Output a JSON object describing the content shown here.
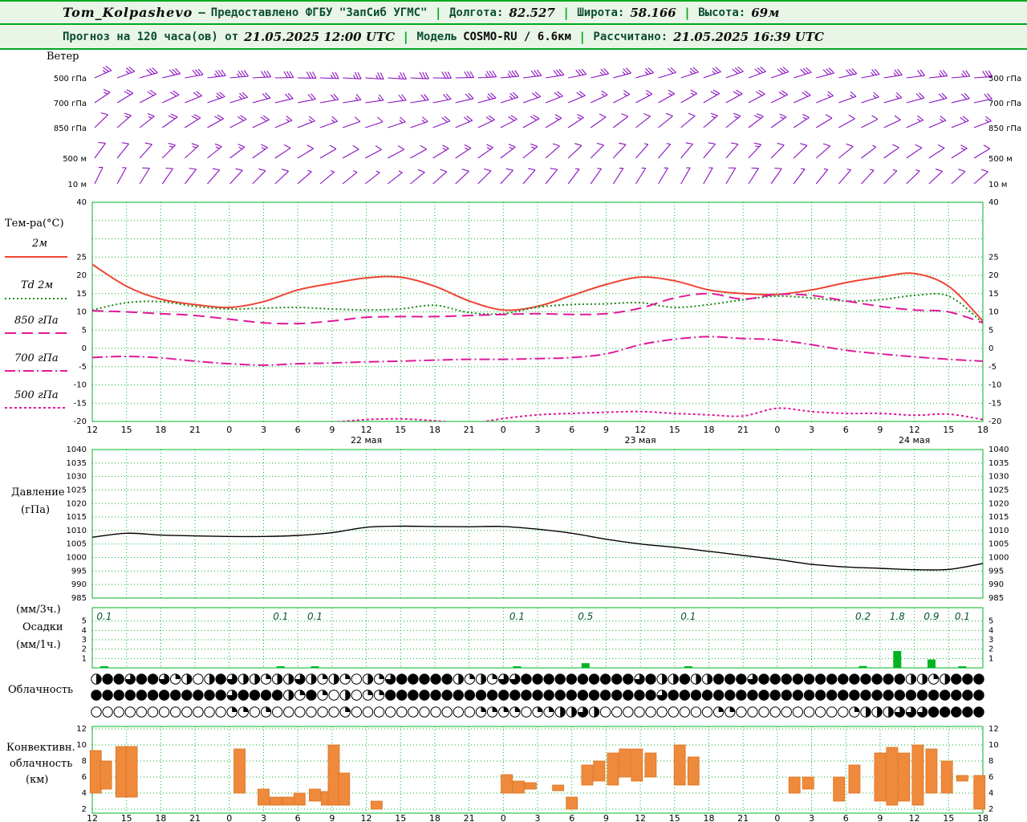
{
  "header": {
    "station": "Tom_Kolpashevo",
    "dash": "—",
    "provided": "Предоставлено ФГБУ \"ЗапСиб УГМС\"",
    "sep": "|",
    "lon_label": "Долгота:",
    "lon_value": "82.527",
    "lat_label": "Широта:",
    "lat_value": "58.166",
    "alt_label": "Высота:",
    "alt_value": "69м",
    "forecast_label": "Прогноз на 120 часа(ов) от",
    "forecast_time": "21.05.2025 12:00 UTC",
    "model_label": "Модель",
    "model_value": "COSMO-RU / 6.6км",
    "calc_label": "Рассчитано:",
    "calc_time": "21.05.2025 16:39 UTC"
  },
  "chart_data": {
    "colors": {
      "grid": "#00b422",
      "axis_text": "#000000",
      "wind": "#8a10c0",
      "pressure_line": "#000000",
      "precip": "#00b422",
      "precip_label": "#045533",
      "convective": "#ef8a3c",
      "convective_edge": "#d9731f"
    },
    "x": {
      "hour_labels": [
        "12",
        "15",
        "18",
        "21",
        "0",
        "3",
        "6",
        "9",
        "12",
        "15",
        "18",
        "21",
        "0",
        "3",
        "6",
        "9",
        "12",
        "15",
        "18",
        "21",
        "0",
        "3",
        "6",
        "9",
        "12",
        "15",
        "18"
      ],
      "date_labels": [
        {
          "label": "22 мая",
          "index": 8
        },
        {
          "label": "23 мая",
          "index": 16
        },
        {
          "label": "24 мая",
          "index": 24
        }
      ]
    },
    "wind": {
      "type": "wind-barbs",
      "panel_label": "Ветер",
      "levels": [
        {
          "name": "500 гПа",
          "dirs": [
            246,
            250,
            254,
            257,
            260,
            263,
            265,
            267,
            269,
            271,
            272,
            273,
            274,
            274,
            273,
            271,
            269,
            267,
            265,
            263,
            261,
            259,
            257,
            255,
            254,
            253,
            252,
            251,
            250,
            250,
            251,
            253,
            255,
            257,
            259,
            261,
            263,
            264,
            265,
            266
          ],
          "speeds": [
            13,
            14,
            15,
            16,
            17,
            18,
            18,
            17,
            16,
            15,
            14,
            13,
            13,
            14,
            15,
            16,
            17,
            18,
            18,
            17,
            16,
            15,
            14,
            13,
            13,
            12,
            13,
            14,
            15,
            16,
            17,
            17,
            16,
            15,
            14,
            13,
            12,
            13,
            14,
            15
          ]
        },
        {
          "name": "700 гПа",
          "dirs": [
            236,
            239,
            242,
            245,
            248,
            251,
            253,
            255,
            257,
            259,
            260,
            261,
            262,
            262,
            261,
            259,
            257,
            255,
            253,
            251,
            249,
            247,
            245,
            243,
            242,
            241,
            240,
            240,
            241,
            242,
            244,
            246,
            248,
            250,
            252,
            254,
            255,
            256,
            257,
            258
          ],
          "speeds": [
            9,
            10,
            11,
            12,
            12,
            13,
            13,
            12,
            11,
            10,
            10,
            9,
            9,
            10,
            11,
            12,
            12,
            13,
            13,
            12,
            11,
            10,
            9,
            9,
            8,
            8,
            9,
            10,
            11,
            12,
            11,
            10,
            9,
            9,
            8,
            9,
            10,
            11,
            12,
            11
          ]
        },
        {
          "name": "850 гПа",
          "dirs": [
            226,
            229,
            232,
            235,
            238,
            241,
            243,
            245,
            247,
            249,
            250,
            251,
            252,
            252,
            251,
            249,
            247,
            245,
            243,
            241,
            239,
            237,
            235,
            233,
            232,
            231,
            230,
            230,
            231,
            233,
            235,
            237,
            239,
            241,
            243,
            245,
            246,
            247,
            248,
            249
          ],
          "speeds": [
            7,
            8,
            9,
            10,
            10,
            11,
            11,
            10,
            9,
            8,
            8,
            7,
            7,
            8,
            9,
            10,
            10,
            11,
            11,
            10,
            9,
            8,
            7,
            7,
            6,
            6,
            7,
            8,
            9,
            10,
            9,
            8,
            7,
            7,
            6,
            7,
            8,
            9,
            10,
            9
          ]
        },
        {
          "name": "500 м",
          "dirs": [
            216,
            219,
            222,
            225,
            228,
            231,
            233,
            235,
            237,
            239,
            240,
            241,
            242,
            242,
            241,
            239,
            237,
            235,
            233,
            231,
            229,
            227,
            225,
            223,
            222,
            221,
            220,
            220,
            221,
            223,
            225,
            227,
            229,
            231,
            233,
            235,
            236,
            237,
            238,
            239
          ],
          "speeds": [
            5,
            6,
            7,
            8,
            8,
            9,
            9,
            8,
            7,
            6,
            6,
            5,
            5,
            6,
            7,
            8,
            8,
            9,
            9,
            8,
            7,
            6,
            5,
            5,
            4,
            4,
            5,
            6,
            7,
            8,
            7,
            6,
            5,
            5,
            4,
            5,
            6,
            7,
            8,
            7
          ]
        },
        {
          "name": "10 м",
          "dirs": [
            206,
            209,
            212,
            215,
            218,
            221,
            223,
            225,
            227,
            229,
            230,
            231,
            232,
            232,
            231,
            229,
            227,
            225,
            223,
            221,
            219,
            217,
            215,
            213,
            212,
            211,
            210,
            210,
            211,
            213,
            215,
            217,
            219,
            221,
            223,
            225,
            226,
            227,
            228,
            229
          ],
          "speeds": [
            3,
            4,
            5,
            6,
            6,
            7,
            7,
            6,
            5,
            4,
            4,
            3,
            3,
            4,
            5,
            6,
            6,
            7,
            7,
            6,
            5,
            4,
            3,
            3,
            3,
            3,
            3,
            4,
            5,
            6,
            5,
            4,
            3,
            3,
            3,
            3,
            4,
            5,
            6,
            5
          ]
        }
      ]
    },
    "temperature": {
      "type": "line",
      "panel_label": "Тем-ра(°C)",
      "ylim": [
        -20,
        40
      ],
      "grid_step": 5,
      "ytick_labels": [
        40,
        25,
        20,
        15,
        10,
        5,
        0,
        -5,
        -10,
        -15,
        -20
      ],
      "series": [
        {
          "name": "2м",
          "color": "#ee4433",
          "dash": "solid",
          "values": [
            23,
            17,
            13.5,
            12,
            11.2,
            12.8,
            16,
            17.8,
            19.3,
            19.5,
            17,
            13,
            10.5,
            11.5,
            14.5,
            17.5,
            19.5,
            18.5,
            16,
            15,
            14.8,
            16,
            18,
            19.5,
            20.5,
            17,
            7.5
          ]
        },
        {
          "name": "Td 2м",
          "color": "#1a8a1a",
          "dash": "dotted",
          "values": [
            10.5,
            12.5,
            12.8,
            11.5,
            10.8,
            11,
            11.2,
            10.8,
            10.5,
            10.8,
            11.8,
            9.8,
            9.5,
            11.3,
            12,
            12.2,
            12.5,
            11.2,
            12,
            13.3,
            14.3,
            13.8,
            13,
            13.3,
            14.5,
            14.3,
            7
          ]
        },
        {
          "name": "850 гПа",
          "color": "#e0189a",
          "dash": "longdash",
          "values": [
            10.3,
            10,
            9.5,
            9,
            8,
            7,
            6.8,
            7.5,
            8.5,
            8.7,
            8.7,
            9,
            9.3,
            9.5,
            9.3,
            9.5,
            11,
            13.8,
            15,
            13.5,
            14.8,
            14.5,
            13,
            11.5,
            10.5,
            10,
            7
          ]
        },
        {
          "name": "700 гПа",
          "color": "#e0189a",
          "dash": "dashdot",
          "values": [
            -2.5,
            -2.2,
            -2.6,
            -3.5,
            -4.2,
            -4.6,
            -4.2,
            -4,
            -3.7,
            -3.5,
            -3.2,
            -3,
            -3,
            -2.8,
            -2.5,
            -1.5,
            1,
            2.5,
            3.2,
            2.7,
            2.3,
            1,
            -0.5,
            -1.5,
            -2.3,
            -3,
            -3.5
          ]
        },
        {
          "name": "500 гПа",
          "color": "#e0189a",
          "dash": "finedash",
          "values": [
            -21,
            -21,
            -20.5,
            -20.5,
            -20.3,
            -20.5,
            -20.5,
            -20.2,
            -19.5,
            -19.3,
            -19.8,
            -20.5,
            -19.2,
            -18.2,
            -17.8,
            -17.5,
            -17.3,
            -17.8,
            -18.2,
            -18.5,
            -16.4,
            -17.3,
            -17.8,
            -17.8,
            -18.3,
            -18,
            -19.5
          ]
        }
      ]
    },
    "pressure": {
      "type": "line",
      "panel_label_1": "Давление",
      "panel_label_2": "(гПа)",
      "ylim": [
        985,
        1040
      ],
      "yticks": [
        1040,
        1035,
        1030,
        1025,
        1020,
        1015,
        1010,
        1005,
        1000,
        995,
        990,
        985
      ],
      "values": [
        1007.5,
        1009,
        1008.3,
        1008,
        1007.8,
        1007.8,
        1008.2,
        1009.2,
        1011.2,
        1011.6,
        1011.5,
        1011.4,
        1011.5,
        1010.5,
        1009,
        1006.8,
        1005,
        1003.8,
        1002.3,
        1000.8,
        999.3,
        997.5,
        996.5,
        996,
        995.5,
        995.6,
        997.8
      ]
    },
    "precipitation": {
      "type": "bar",
      "panel_label_1": "(мм/3ч.)",
      "panel_label_2": "Осадки",
      "panel_label_3": "(мм/1ч.)",
      "ylim": [
        0,
        5
      ],
      "yticks": [
        5,
        4,
        3,
        2,
        1
      ],
      "bars": [
        {
          "i": 0.35,
          "v": 0.1,
          "label": "0.1"
        },
        {
          "i": 5.5,
          "v": 0.1,
          "label": "0.1"
        },
        {
          "i": 6.5,
          "v": 0.1,
          "label": "0.1"
        },
        {
          "i": 12.4,
          "v": 0.1,
          "label": "0.1"
        },
        {
          "i": 14.4,
          "v": 0.5,
          "label": "0.5"
        },
        {
          "i": 17.4,
          "v": 0.1,
          "label": "0.1"
        },
        {
          "i": 22.5,
          "v": 0.2,
          "label": "0.2"
        },
        {
          "i": 23.5,
          "v": 1.8,
          "label": "1.8"
        },
        {
          "i": 24.5,
          "v": 0.9,
          "label": "0.9"
        },
        {
          "i": 25.4,
          "v": 0.1,
          "label": "0.1"
        }
      ]
    },
    "cloudiness": {
      "type": "symbols",
      "panel_label": "Облачность",
      "note": "digits 0-4 = cloud cover quarters, 4 = overcast",
      "rows": [
        "2443443120243221223212102134444421213344444444443422422444344444444444442212444",
        "4444444444443444421410201144444444444444444444444434444444444444444444444444444",
        "0000000000001101000000100000000000111101122320000000000110000000000122233344444"
      ]
    },
    "convective": {
      "type": "range-bar",
      "panel_label_1": "Конвективн.",
      "panel_label_2": "облачность",
      "panel_label_3": "(км)",
      "yticks": [
        12,
        10,
        8,
        6,
        4,
        2
      ],
      "bars": [
        {
          "i": 0.1,
          "base": 4,
          "top": 9.3
        },
        {
          "i": 0.4,
          "base": 4.5,
          "top": 8
        },
        {
          "i": 0.85,
          "base": 3.5,
          "top": 9.8
        },
        {
          "i": 1.15,
          "base": 3.5,
          "top": 9.8
        },
        {
          "i": 4.3,
          "base": 4,
          "top": 9.5
        },
        {
          "i": 5.0,
          "base": 2.5,
          "top": 4.5
        },
        {
          "i": 5.35,
          "base": 2.5,
          "top": 3.5
        },
        {
          "i": 5.7,
          "base": 2.5,
          "top": 3.5
        },
        {
          "i": 6.05,
          "base": 2.5,
          "top": 4
        },
        {
          "i": 6.5,
          "base": 3,
          "top": 4.5
        },
        {
          "i": 6.85,
          "base": 2.5,
          "top": 4.2
        },
        {
          "i": 7.05,
          "base": 2.5,
          "top": 10
        },
        {
          "i": 7.35,
          "base": 2.5,
          "top": 6.5
        },
        {
          "i": 8.3,
          "base": 2,
          "top": 3
        },
        {
          "i": 12.1,
          "base": 4,
          "top": 6.3
        },
        {
          "i": 12.45,
          "base": 4,
          "top": 5.5
        },
        {
          "i": 12.8,
          "base": 4.5,
          "top": 5.3
        },
        {
          "i": 13.6,
          "base": 4.3,
          "top": 5
        },
        {
          "i": 14.0,
          "base": 2,
          "top": 3.5
        },
        {
          "i": 14.45,
          "base": 5,
          "top": 7.5
        },
        {
          "i": 14.8,
          "base": 5.5,
          "top": 8
        },
        {
          "i": 15.2,
          "base": 5,
          "top": 9
        },
        {
          "i": 15.55,
          "base": 6,
          "top": 9.5
        },
        {
          "i": 15.9,
          "base": 5.5,
          "top": 9.5
        },
        {
          "i": 16.3,
          "base": 6,
          "top": 9
        },
        {
          "i": 17.15,
          "base": 5,
          "top": 10
        },
        {
          "i": 17.55,
          "base": 5,
          "top": 8.5
        },
        {
          "i": 20.5,
          "base": 4,
          "top": 6
        },
        {
          "i": 20.9,
          "base": 4.5,
          "top": 6
        },
        {
          "i": 21.8,
          "base": 3,
          "top": 6
        },
        {
          "i": 22.25,
          "base": 4,
          "top": 7.5
        },
        {
          "i": 23.0,
          "base": 3,
          "top": 9
        },
        {
          "i": 23.35,
          "base": 2.5,
          "top": 9.7
        },
        {
          "i": 23.7,
          "base": 3,
          "top": 9
        },
        {
          "i": 24.1,
          "base": 2.5,
          "top": 10
        },
        {
          "i": 24.5,
          "base": 4,
          "top": 9.5
        },
        {
          "i": 24.95,
          "base": 4,
          "top": 8
        },
        {
          "i": 25.4,
          "base": 5.5,
          "top": 6.2
        },
        {
          "i": 25.9,
          "base": 2,
          "top": 6.2
        }
      ]
    }
  }
}
